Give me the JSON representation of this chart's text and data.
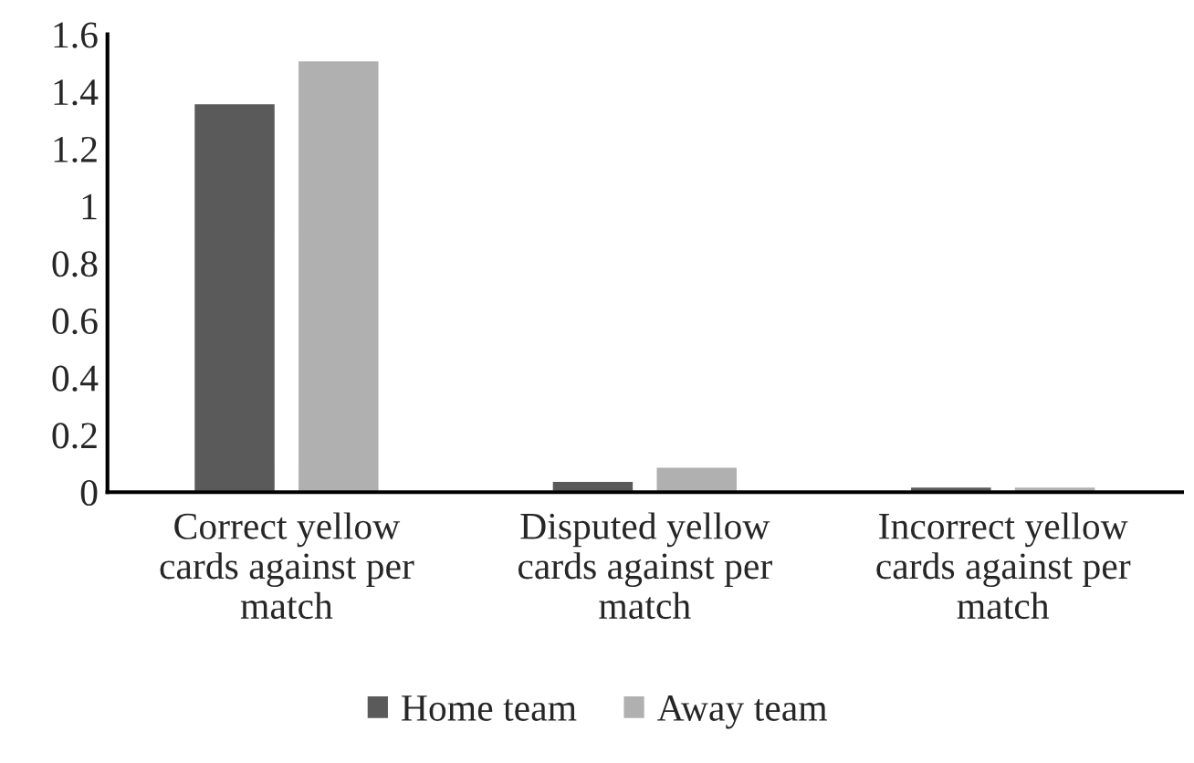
{
  "chart_data": {
    "type": "bar",
    "categories": [
      "Correct yellow cards against per match",
      "Disputed yellow cards against per match",
      "Incorrect yellow cards against per match"
    ],
    "series": [
      {
        "name": "Home team",
        "color": "#5a5a5a",
        "values": [
          1.36,
          0.04,
          0.02
        ]
      },
      {
        "name": "Away team",
        "color": "#b0b0b0",
        "values": [
          1.51,
          0.09,
          0.02
        ]
      }
    ],
    "ylim": [
      0,
      1.6
    ],
    "yticks": [
      0,
      0.2,
      0.4,
      0.6,
      0.8,
      1,
      1.2,
      1.4,
      1.6
    ],
    "grid": false,
    "legend": "bottom"
  }
}
